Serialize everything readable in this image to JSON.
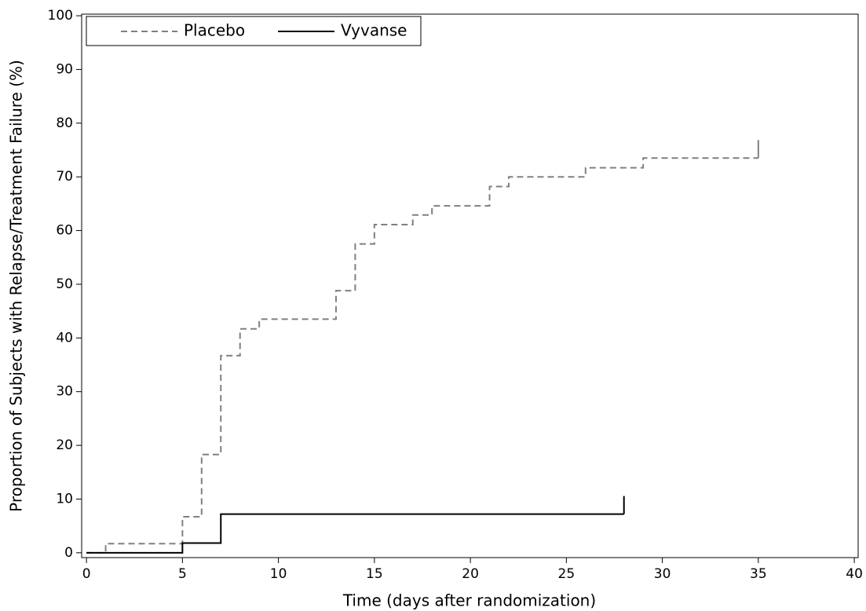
{
  "chart_data": {
    "type": "step",
    "x_label": "Time (days after randomization)",
    "y_label": "Proportion of Subjects with Relapse/Treatment Failure (%)",
    "xlim": [
      -0.25,
      40.2
    ],
    "ylim": [
      -0.9,
      100.3
    ],
    "xticks": [
      0,
      5,
      10,
      15,
      20,
      25,
      30,
      35,
      40
    ],
    "yticks": [
      0,
      10,
      20,
      30,
      40,
      50,
      60,
      70,
      80,
      90,
      100
    ],
    "legend": "upper left",
    "censor_marks": true,
    "series": [
      {
        "name": "Placebo",
        "color": "#808080",
        "dashed": true,
        "x": [
          0,
          1,
          5,
          6,
          7,
          8,
          9,
          13,
          14,
          15,
          17,
          18,
          21,
          22,
          26,
          29,
          35
        ],
        "values": [
          0,
          1.7,
          6.7,
          18.3,
          36.7,
          41.7,
          43.5,
          48.8,
          57.5,
          61.1,
          62.9,
          64.6,
          68.2,
          70.0,
          71.7,
          73.5,
          73.5
        ]
      },
      {
        "name": "Vyvanse",
        "color": "#000000",
        "dashed": false,
        "x": [
          0,
          5,
          7,
          28
        ],
        "values": [
          0,
          1.8,
          7.2,
          7.2
        ]
      }
    ]
  }
}
